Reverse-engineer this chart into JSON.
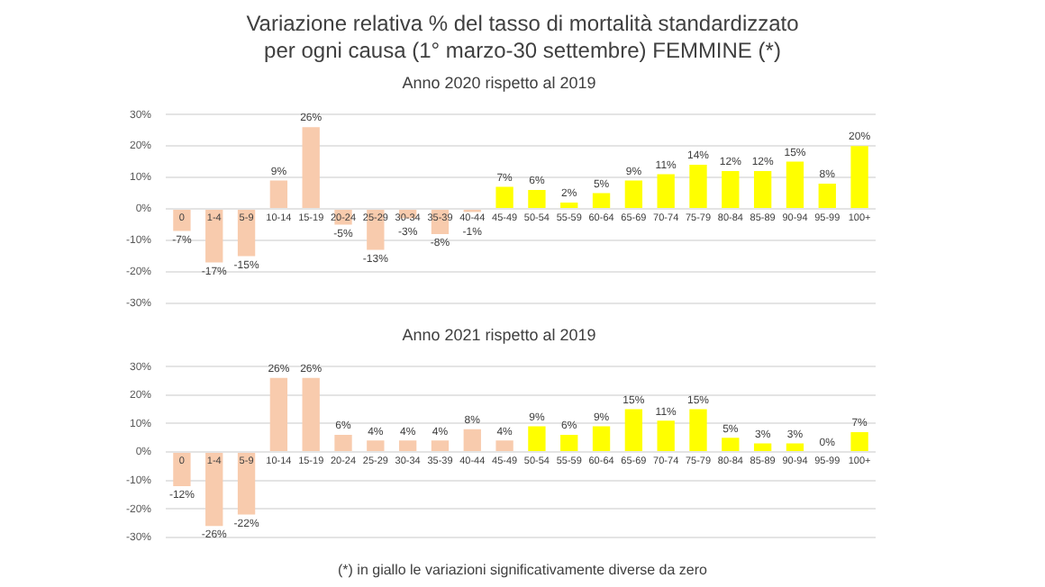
{
  "chart_data": [
    {
      "type": "bar",
      "title": "Variazione relativa % del tasso di mortalità standardizzato\nper ogni causa (1° marzo-30 settembre) FEMMINE (*)",
      "subtitle": "Anno 2020 rispetto al 2019",
      "categories": [
        "0",
        "1-4",
        "5-9",
        "10-14",
        "15-19",
        "20-24",
        "25-29",
        "30-34",
        "35-39",
        "40-44",
        "45-49",
        "50-54",
        "55-59",
        "60-64",
        "65-69",
        "70-74",
        "75-79",
        "80-84",
        "85-89",
        "90-94",
        "95-99",
        "100+"
      ],
      "values": [
        -7,
        -17,
        -15,
        9,
        26,
        -5,
        -13,
        -3,
        -8,
        -1,
        7,
        6,
        2,
        5,
        9,
        11,
        14,
        12,
        12,
        15,
        8,
        20
      ],
      "value_labels": [
        "-7%",
        "-17%",
        "-15%",
        "9%",
        "26%",
        "-5%",
        "-13%",
        "-3%",
        "-8%",
        "-1%",
        "7%",
        "6%",
        "2%",
        "5%",
        "9%",
        "11%",
        "14%",
        "12%",
        "12%",
        "15%",
        "8%",
        "20%"
      ],
      "colors": [
        "#f8cbad",
        "#f8cbad",
        "#f8cbad",
        "#f8cbad",
        "#f8cbad",
        "#f8cbad",
        "#f8cbad",
        "#f8cbad",
        "#f8cbad",
        "#f8cbad",
        "#ffff00",
        "#ffff00",
        "#ffff00",
        "#ffff00",
        "#ffff00",
        "#ffff00",
        "#ffff00",
        "#ffff00",
        "#ffff00",
        "#ffff00",
        "#ffff00",
        "#ffff00"
      ],
      "ylim": [
        -30,
        30
      ],
      "yticks": [
        {
          "value": -30,
          "label": "-30%"
        },
        {
          "value": -20,
          "label": "-20%"
        },
        {
          "value": -10,
          "label": "-10%"
        },
        {
          "value": 0,
          "label": "0%"
        },
        {
          "value": 10,
          "label": "10%"
        },
        {
          "value": 20,
          "label": "20%"
        },
        {
          "value": 30,
          "label": "30%"
        }
      ],
      "grid": "y",
      "legend": false
    },
    {
      "type": "bar",
      "subtitle": "Anno 2021 rispetto al 2019",
      "categories": [
        "0",
        "1-4",
        "5-9",
        "10-14",
        "15-19",
        "20-24",
        "25-29",
        "30-34",
        "35-39",
        "40-44",
        "45-49",
        "50-54",
        "55-59",
        "60-64",
        "65-69",
        "70-74",
        "75-79",
        "80-84",
        "85-89",
        "90-94",
        "95-99",
        "100+"
      ],
      "values": [
        -12,
        -26,
        -22,
        26,
        26,
        6,
        4,
        4,
        4,
        8,
        4,
        9,
        6,
        9,
        15,
        11,
        15,
        5,
        3,
        3,
        0,
        7
      ],
      "value_labels": [
        "-12%",
        "-26%",
        "-22%",
        "26%",
        "26%",
        "6%",
        "4%",
        "4%",
        "4%",
        "8%",
        "4%",
        "9%",
        "6%",
        "9%",
        "15%",
        "11%",
        "15%",
        "5%",
        "3%",
        "3%",
        "0%",
        "7%"
      ],
      "colors": [
        "#f8cbad",
        "#f8cbad",
        "#f8cbad",
        "#f8cbad",
        "#f8cbad",
        "#f8cbad",
        "#f8cbad",
        "#f8cbad",
        "#f8cbad",
        "#f8cbad",
        "#f8cbad",
        "#ffff00",
        "#ffff00",
        "#ffff00",
        "#ffff00",
        "#ffff00",
        "#ffff00",
        "#ffff00",
        "#ffff00",
        "#ffff00",
        "#f8cbad",
        "#ffff00"
      ],
      "ylim": [
        -30,
        30
      ],
      "yticks": [
        {
          "value": -30,
          "label": "-30%"
        },
        {
          "value": -20,
          "label": "-20%"
        },
        {
          "value": -10,
          "label": "-10%"
        },
        {
          "value": 0,
          "label": "0%"
        },
        {
          "value": 10,
          "label": "10%"
        },
        {
          "value": 20,
          "label": "20%"
        },
        {
          "value": 30,
          "label": "30%"
        }
      ],
      "grid": "y",
      "legend": false,
      "annotations": [
        "(*) in giallo le variazioni significativamente diverse da zero"
      ]
    }
  ]
}
